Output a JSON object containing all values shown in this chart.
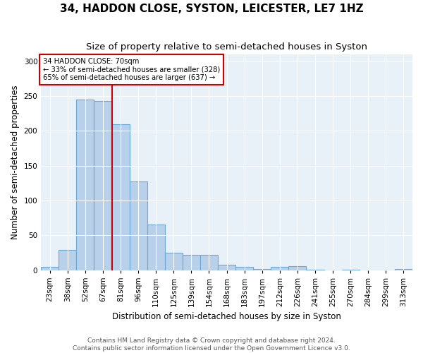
{
  "title": "34, HADDON CLOSE, SYSTON, LEICESTER, LE7 1HZ",
  "subtitle": "Size of property relative to semi-detached houses in Syston",
  "xlabel": "Distribution of semi-detached houses by size in Syston",
  "ylabel": "Number of semi-detached properties",
  "categories": [
    "23sqm",
    "38sqm",
    "52sqm",
    "67sqm",
    "81sqm",
    "96sqm",
    "110sqm",
    "125sqm",
    "139sqm",
    "154sqm",
    "168sqm",
    "183sqm",
    "197sqm",
    "212sqm",
    "226sqm",
    "241sqm",
    "255sqm",
    "270sqm",
    "284sqm",
    "299sqm",
    "313sqm"
  ],
  "values": [
    5,
    29,
    245,
    243,
    210,
    127,
    65,
    25,
    22,
    22,
    8,
    5,
    2,
    5,
    6,
    1,
    0,
    1,
    0,
    0,
    2
  ],
  "bar_color": "#b8d0ea",
  "bar_edge_color": "#6aaad4",
  "property_label": "34 HADDON CLOSE: 70sqm",
  "annotation_line1": "← 33% of semi-detached houses are smaller (328)",
  "annotation_line2": "65% of semi-detached houses are larger (637) →",
  "vline_color": "#cc0000",
  "vline_position": 3.5,
  "annotation_box_color": "#ffffff",
  "annotation_box_edgecolor": "#cc0000",
  "footer1": "Contains HM Land Registry data © Crown copyright and database right 2024.",
  "footer2": "Contains public sector information licensed under the Open Government Licence v3.0.",
  "ylim": [
    0,
    310
  ],
  "yticks": [
    0,
    50,
    100,
    150,
    200,
    250,
    300
  ],
  "title_fontsize": 11,
  "subtitle_fontsize": 9.5,
  "axis_label_fontsize": 8.5,
  "tick_fontsize": 7.5,
  "footer_fontsize": 6.5,
  "bg_color": "#e8f0f8",
  "grid_color": "#ffffff"
}
